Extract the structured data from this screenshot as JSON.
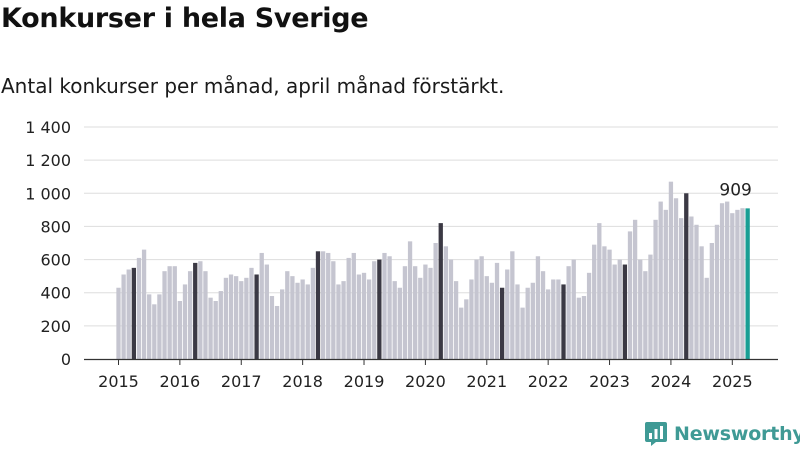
{
  "title": "Konkurser i hela Sverige",
  "subtitle": "Antal konkurser per månad, april månad förstärkt.",
  "brand": "Newsworthy",
  "colors": {
    "bar": "#c5c5d0",
    "highlight": "#3b3944",
    "latest": "#199e94",
    "brand": "#3f9a95",
    "grid": "#dddddd"
  },
  "chart_data": {
    "type": "bar",
    "start_month": "2015-01",
    "ylim": [
      0,
      1400
    ],
    "yticks": [
      0,
      200,
      400,
      600,
      800,
      1000,
      1200,
      1400
    ],
    "ytick_labels": [
      "0",
      "200",
      "400",
      "600",
      "800",
      "1 000",
      "1 200",
      "1 400"
    ],
    "xtick_labels": [
      "2015",
      "2016",
      "2017",
      "2018",
      "2019",
      "2020",
      "2021",
      "2022",
      "2023",
      "2024",
      "2025"
    ],
    "highlight_month": "april",
    "grid": true,
    "latest_label": "909",
    "values": [
      430,
      510,
      540,
      550,
      610,
      660,
      390,
      330,
      390,
      530,
      560,
      560,
      350,
      450,
      530,
      580,
      590,
      530,
      370,
      350,
      410,
      490,
      510,
      500,
      470,
      490,
      550,
      510,
      640,
      570,
      380,
      320,
      420,
      530,
      500,
      460,
      480,
      450,
      550,
      650,
      650,
      640,
      590,
      450,
      470,
      610,
      640,
      510,
      520,
      480,
      590,
      600,
      640,
      620,
      470,
      430,
      560,
      710,
      560,
      490,
      570,
      550,
      700,
      820,
      680,
      600,
      470,
      310,
      360,
      480,
      600,
      620,
      500,
      460,
      580,
      430,
      540,
      650,
      450,
      310,
      430,
      460,
      620,
      530,
      420,
      480,
      480,
      450,
      560,
      600,
      370,
      380,
      520,
      690,
      820,
      680,
      660,
      570,
      600,
      570,
      770,
      840,
      600,
      530,
      630,
      840,
      950,
      900,
      1070,
      970,
      850,
      1000,
      860,
      810,
      680,
      490,
      700,
      810,
      940,
      950,
      880,
      900,
      910,
      909
    ]
  }
}
